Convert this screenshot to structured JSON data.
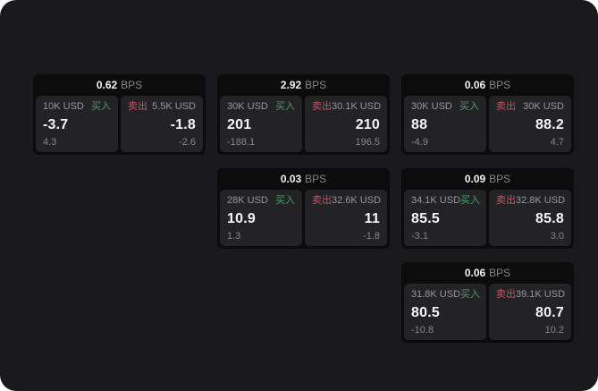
{
  "labels": {
    "buy": "买入",
    "sell": "卖出",
    "bps": "BPS"
  },
  "colors": {
    "buy": "#4a9e6b",
    "sell": "#c25568",
    "screen_bg": "#1a1a1c",
    "card_bg": "#0c0c0d",
    "panel_bg": "#232325"
  },
  "cards": [
    {
      "row": 1,
      "col": 1,
      "bps": "0.62",
      "buy": {
        "size": "10K USD",
        "value": "-3.7",
        "sub": "4.3"
      },
      "sell": {
        "size": "5.5K USD",
        "value": "-1.8",
        "sub": "-2.6"
      }
    },
    {
      "row": 1,
      "col": 2,
      "bps": "2.92",
      "buy": {
        "size": "30K USD",
        "value": "201",
        "sub": "-188.1"
      },
      "sell": {
        "size": "30.1K USD",
        "value": "210",
        "sub": "196.5"
      }
    },
    {
      "row": 1,
      "col": 3,
      "bps": "0.06",
      "buy": {
        "size": "30K USD",
        "value": "88",
        "sub": "-4.9"
      },
      "sell": {
        "size": "30K USD",
        "value": "88.2",
        "sub": "4.7"
      }
    },
    {
      "row": 2,
      "col": 2,
      "bps": "0.03",
      "buy": {
        "size": "28K USD",
        "value": "10.9",
        "sub": "1.3"
      },
      "sell": {
        "size": "32.6K USD",
        "value": "11",
        "sub": "-1.8"
      }
    },
    {
      "row": 2,
      "col": 3,
      "bps": "0.09",
      "buy": {
        "size": "34.1K USD",
        "value": "85.5",
        "sub": "-3.1"
      },
      "sell": {
        "size": "32.8K USD",
        "value": "85.8",
        "sub": "3.0"
      }
    },
    {
      "row": 3,
      "col": 3,
      "bps": "0.06",
      "buy": {
        "size": "31.8K USD",
        "value": "80.5",
        "sub": "-10.8"
      },
      "sell": {
        "size": "39.1K USD",
        "value": "80.7",
        "sub": "10.2"
      }
    }
  ]
}
